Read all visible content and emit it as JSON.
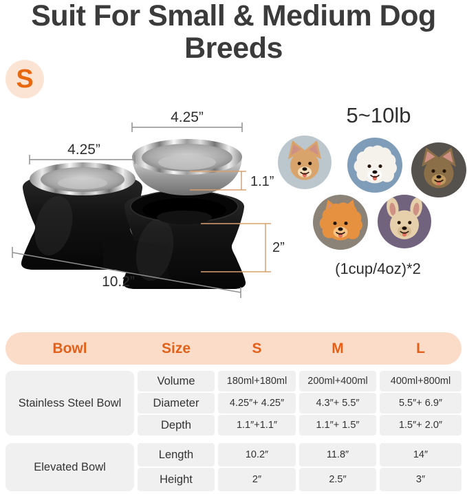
{
  "title": "Suit For Small & Medium Dog Breeds",
  "size_badge": "S",
  "colors": {
    "accent_orange": "#e2611a",
    "badge_orange": "#e8680f",
    "header_peach": "#fbdcc8",
    "badge_peach": "#fce4d4",
    "row_gray": "#f0f0f0",
    "title_gray": "#3b3b3b",
    "dim_line_gray": "#8f8f8f",
    "dim_line_tan": "#d9a06d"
  },
  "figure": {
    "dims": {
      "raised_bowl_diameter": "4.25”",
      "left_bowl_diameter": "4.25”",
      "bowl_depth": "1.1”",
      "stand_height": "2”",
      "stand_length": "10.2”"
    }
  },
  "dogs": {
    "weight_range": "5~10lb",
    "capacity_note": "(1cup/4oz)*2",
    "breeds": [
      {
        "name": "chihuahua",
        "bg": "#bcc7cd",
        "fur": "#d8a46b",
        "muzzle": "#f3ddba",
        "ear": "pointy",
        "fluffy": false
      },
      {
        "name": "bichon-frise",
        "bg": "#7f9cb8",
        "fur": "#f5f2ec",
        "muzzle": "#ffffff",
        "ear": "none",
        "fluffy": true
      },
      {
        "name": "yorkshire-terrier",
        "bg": "#55514d",
        "fur": "#8a6f48",
        "muzzle": "#c09a5e",
        "ear": "pointy",
        "fluffy": false
      },
      {
        "name": "pomeranian",
        "bg": "#8b8278",
        "fur": "#e5913f",
        "muzzle": "#f6c488",
        "ear": "pointy",
        "fluffy": true
      },
      {
        "name": "french-bulldog",
        "bg": "#71637e",
        "fur": "#e6d0ab",
        "muzzle": "#d9bd92",
        "ear": "bat",
        "fluffy": false
      }
    ]
  },
  "table": {
    "headers": [
      "Bowl",
      "Size",
      "S",
      "M",
      "L"
    ],
    "groups": [
      {
        "label": "Stainless Steel Bowl",
        "rows": [
          {
            "property": "Volume",
            "values": [
              "180ml+180ml",
              "200ml+400ml",
              "400ml+800ml"
            ]
          },
          {
            "property": "Diameter",
            "values": [
              "4.25″+ 4.25″",
              "4.3″+ 5.5″",
              "5.5″+ 6.9″"
            ]
          },
          {
            "property": "Depth",
            "values": [
              "1.1″+1.1″",
              "1.1″+ 1.5″",
              "1.5″+ 2.0″"
            ]
          }
        ]
      },
      {
        "label": "Elevated Bowl",
        "rows": [
          {
            "property": "Length",
            "values": [
              "10.2″",
              "11.8″",
              "14″"
            ]
          },
          {
            "property": "Height",
            "values": [
              "2″",
              "2.5″",
              "3″"
            ]
          }
        ]
      }
    ]
  }
}
